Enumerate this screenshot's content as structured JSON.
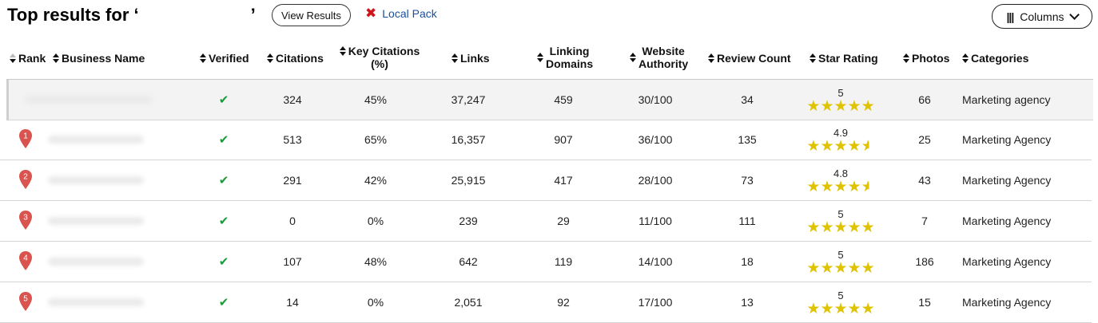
{
  "header": {
    "title_prefix": "Top results for ‘",
    "title_suffix": "’",
    "view_results_label": "View Results",
    "local_pack_label": "Local Pack",
    "columns_label": "Columns"
  },
  "columns": {
    "rank": "Rank",
    "business_name": "Business Name",
    "verified": "Verified",
    "citations": "Citations",
    "key_citations": "Key Citations",
    "key_citations_sub": "(%)",
    "links": "Links",
    "linking_domains_1": "Linking",
    "linking_domains_2": "Domains",
    "website_authority_1": "Website",
    "website_authority_2": "Authority",
    "review_count": "Review Count",
    "star_rating": "Star Rating",
    "photos": "Photos",
    "categories": "Categories"
  },
  "rows": [
    {
      "rank": "",
      "verified": true,
      "citations": "324",
      "key_citations": "45%",
      "links": "37,247",
      "linking_domains": "459",
      "website_authority": "30/100",
      "review_count": "34",
      "star_rating": "5",
      "star_value": 5,
      "photos": "66",
      "category": "Marketing agency"
    },
    {
      "rank": "1",
      "verified": true,
      "citations": "513",
      "key_citations": "65%",
      "links": "16,357",
      "linking_domains": "907",
      "website_authority": "36/100",
      "review_count": "135",
      "star_rating": "4.9",
      "star_value": 4.9,
      "photos": "25",
      "category": "Marketing Agency"
    },
    {
      "rank": "2",
      "verified": true,
      "citations": "291",
      "key_citations": "42%",
      "links": "25,915",
      "linking_domains": "417",
      "website_authority": "28/100",
      "review_count": "73",
      "star_rating": "4.8",
      "star_value": 4.8,
      "photos": "43",
      "category": "Marketing Agency"
    },
    {
      "rank": "3",
      "verified": true,
      "citations": "0",
      "key_citations": "0%",
      "links": "239",
      "linking_domains": "29",
      "website_authority": "11/100",
      "review_count": "111",
      "star_rating": "5",
      "star_value": 5,
      "photos": "7",
      "category": "Marketing Agency"
    },
    {
      "rank": "4",
      "verified": true,
      "citations": "107",
      "key_citations": "48%",
      "links": "642",
      "linking_domains": "119",
      "website_authority": "14/100",
      "review_count": "18",
      "star_rating": "5",
      "star_value": 5,
      "photos": "186",
      "category": "Marketing Agency"
    },
    {
      "rank": "5",
      "verified": true,
      "citations": "14",
      "key_citations": "0%",
      "links": "2,051",
      "linking_domains": "92",
      "website_authority": "17/100",
      "review_count": "13",
      "star_rating": "5",
      "star_value": 5,
      "photos": "15",
      "category": "Marketing Agency"
    }
  ],
  "icons": {
    "verified": "check-icon",
    "rank": "map-pin-icon",
    "local_pack_toggle": "close-icon",
    "columns": "columns-icon",
    "sort": "sort-icon",
    "star": "star-icon"
  },
  "colors": {
    "pin": "#d9534f",
    "check": "#1a9a3a",
    "star": "#e0c300",
    "link": "#1a4f9c",
    "close": "#d0141c"
  }
}
